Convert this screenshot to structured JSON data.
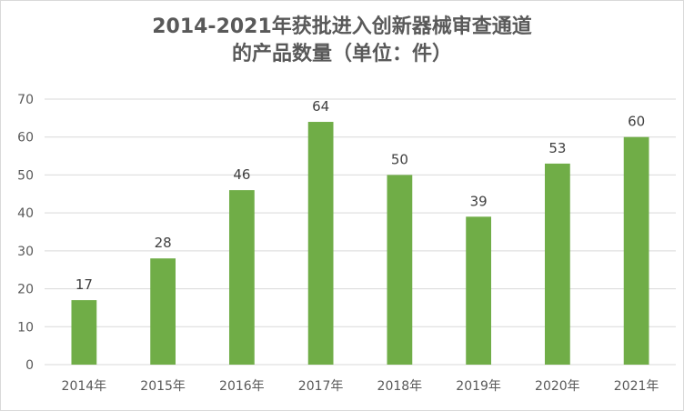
{
  "chart_data": {
    "type": "bar",
    "title_line1": "2014-2021年获批进入创新器械审查通道",
    "title_line2": "的产品数量（单位：件）",
    "categories": [
      "2014年",
      "2015年",
      "2016年",
      "2017年",
      "2018年",
      "2019年",
      "2020年",
      "2021年"
    ],
    "values": [
      17,
      28,
      46,
      64,
      50,
      39,
      53,
      60
    ],
    "ylim": [
      0,
      70
    ],
    "yticks": [
      0,
      10,
      20,
      30,
      40,
      50,
      60,
      70
    ],
    "grid": true,
    "legend": "none",
    "bar_color": "#70ad47",
    "grid_color": "#d9d9d9"
  }
}
